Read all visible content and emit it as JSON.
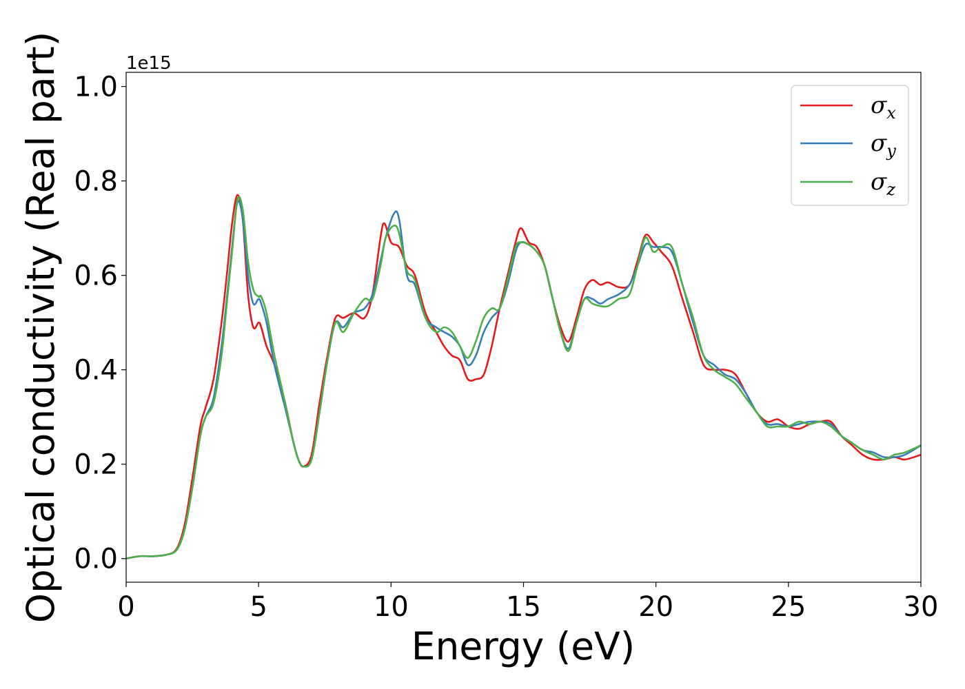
{
  "chart_data": {
    "type": "line",
    "title": "",
    "xlabel": "Energy (eV)",
    "ylabel": "Optical conductivity (Real part)",
    "y_offset_label": "1e15",
    "xlim": [
      0,
      30
    ],
    "ylim": [
      -0.05,
      1.03
    ],
    "xticks": [
      0,
      5,
      10,
      15,
      20,
      25,
      30
    ],
    "yticks": [
      0.0,
      0.2,
      0.4,
      0.6,
      0.8,
      1.0
    ],
    "xtick_labels": [
      "0",
      "5",
      "10",
      "15",
      "20",
      "25",
      "30"
    ],
    "ytick_labels": [
      "0.0",
      "0.2",
      "0.4",
      "0.6",
      "0.8",
      "1.0"
    ],
    "grid": false,
    "legend_position": "top-right",
    "series": [
      {
        "name": "σ",
        "subscript": "x",
        "color": "#e41a1c",
        "x": [
          0,
          0.5,
          1,
          1.5,
          1.9,
          2.2,
          2.5,
          2.8,
          3.0,
          3.3,
          3.6,
          3.8,
          4.0,
          4.2,
          4.4,
          4.6,
          4.8,
          5.0,
          5.1,
          5.3,
          5.6,
          6.0,
          6.3,
          6.5,
          6.7,
          7.0,
          7.3,
          7.6,
          7.9,
          8.2,
          8.6,
          9.0,
          9.3,
          9.6,
          9.75,
          10.0,
          10.3,
          10.6,
          10.9,
          11.3,
          11.7,
          12.0,
          12.3,
          12.6,
          12.9,
          13.2,
          13.5,
          13.8,
          14.1,
          14.4,
          14.7,
          14.9,
          15.2,
          15.5,
          15.8,
          16.1,
          16.4,
          16.7,
          17.0,
          17.3,
          17.6,
          17.9,
          18.2,
          18.6,
          19.0,
          19.3,
          19.6,
          19.9,
          20.2,
          20.6,
          21.0,
          21.4,
          21.8,
          22.2,
          22.6,
          23.0,
          23.4,
          23.8,
          24.2,
          24.6,
          25.0,
          25.4,
          25.8,
          26.2,
          26.6,
          27.0,
          27.4,
          27.8,
          28.2,
          28.6,
          29.0,
          29.4,
          30.0
        ],
        "y": [
          0.0,
          0.005,
          0.005,
          0.008,
          0.02,
          0.07,
          0.17,
          0.28,
          0.32,
          0.38,
          0.5,
          0.6,
          0.71,
          0.77,
          0.72,
          0.56,
          0.49,
          0.5,
          0.49,
          0.45,
          0.41,
          0.33,
          0.25,
          0.21,
          0.195,
          0.22,
          0.33,
          0.43,
          0.51,
          0.51,
          0.52,
          0.51,
          0.56,
          0.68,
          0.71,
          0.67,
          0.66,
          0.62,
          0.6,
          0.52,
          0.48,
          0.45,
          0.43,
          0.42,
          0.38,
          0.38,
          0.39,
          0.45,
          0.53,
          0.6,
          0.67,
          0.7,
          0.67,
          0.66,
          0.62,
          0.55,
          0.49,
          0.46,
          0.51,
          0.57,
          0.59,
          0.58,
          0.585,
          0.575,
          0.58,
          0.63,
          0.685,
          0.67,
          0.65,
          0.62,
          0.55,
          0.48,
          0.41,
          0.4,
          0.4,
          0.39,
          0.35,
          0.31,
          0.29,
          0.295,
          0.28,
          0.275,
          0.285,
          0.29,
          0.29,
          0.26,
          0.24,
          0.22,
          0.21,
          0.21,
          0.215,
          0.21,
          0.22
        ]
      },
      {
        "name": "σ",
        "subscript": "y",
        "color": "#377eb8",
        "x": [
          0,
          0.5,
          1,
          1.5,
          1.9,
          2.2,
          2.5,
          2.8,
          3.0,
          3.3,
          3.6,
          3.8,
          4.0,
          4.2,
          4.4,
          4.6,
          4.8,
          5.0,
          5.1,
          5.3,
          5.6,
          6.0,
          6.3,
          6.5,
          6.7,
          7.0,
          7.3,
          7.6,
          7.9,
          8.2,
          8.6,
          9.0,
          9.3,
          9.6,
          9.8,
          10.1,
          10.3,
          10.6,
          10.9,
          11.3,
          11.7,
          12.0,
          12.3,
          12.6,
          12.9,
          13.2,
          13.5,
          13.8,
          14.1,
          14.4,
          14.7,
          14.9,
          15.2,
          15.5,
          15.8,
          16.1,
          16.4,
          16.7,
          17.0,
          17.3,
          17.6,
          17.9,
          18.2,
          18.6,
          19.0,
          19.3,
          19.6,
          19.9,
          20.2,
          20.6,
          21.0,
          21.4,
          21.8,
          22.2,
          22.6,
          23.0,
          23.4,
          23.8,
          24.2,
          24.6,
          25.0,
          25.4,
          25.8,
          26.2,
          26.6,
          27.0,
          27.4,
          27.8,
          28.2,
          28.6,
          29.0,
          29.4,
          30.0
        ],
        "y": [
          0.0,
          0.005,
          0.005,
          0.008,
          0.018,
          0.06,
          0.15,
          0.26,
          0.3,
          0.34,
          0.45,
          0.55,
          0.66,
          0.755,
          0.72,
          0.6,
          0.54,
          0.55,
          0.54,
          0.5,
          0.41,
          0.32,
          0.25,
          0.21,
          0.195,
          0.21,
          0.31,
          0.42,
          0.5,
          0.49,
          0.52,
          0.53,
          0.56,
          0.63,
          0.68,
          0.73,
          0.72,
          0.6,
          0.58,
          0.51,
          0.49,
          0.48,
          0.47,
          0.45,
          0.41,
          0.43,
          0.48,
          0.51,
          0.53,
          0.58,
          0.65,
          0.67,
          0.665,
          0.65,
          0.62,
          0.55,
          0.48,
          0.445,
          0.5,
          0.55,
          0.55,
          0.54,
          0.55,
          0.56,
          0.58,
          0.62,
          0.665,
          0.66,
          0.66,
          0.65,
          0.58,
          0.5,
          0.43,
          0.41,
          0.39,
          0.38,
          0.35,
          0.31,
          0.285,
          0.285,
          0.28,
          0.285,
          0.29,
          0.29,
          0.285,
          0.26,
          0.245,
          0.23,
          0.225,
          0.215,
          0.215,
          0.22,
          0.24
        ]
      },
      {
        "name": "σ",
        "subscript": "z",
        "color": "#4daf4a",
        "x": [
          0,
          0.5,
          1,
          1.5,
          1.9,
          2.2,
          2.5,
          2.8,
          3.0,
          3.3,
          3.6,
          3.8,
          4.0,
          4.2,
          4.4,
          4.6,
          4.8,
          5.0,
          5.1,
          5.3,
          5.6,
          6.0,
          6.3,
          6.5,
          6.7,
          7.0,
          7.3,
          7.6,
          7.9,
          8.2,
          8.6,
          9.0,
          9.3,
          9.6,
          9.8,
          10.1,
          10.3,
          10.6,
          10.9,
          11.3,
          11.7,
          12.0,
          12.3,
          12.6,
          12.9,
          13.2,
          13.5,
          13.8,
          14.1,
          14.4,
          14.7,
          14.9,
          15.2,
          15.5,
          15.8,
          16.1,
          16.4,
          16.7,
          17.0,
          17.3,
          17.6,
          17.9,
          18.2,
          18.6,
          19.0,
          19.3,
          19.6,
          19.9,
          20.2,
          20.6,
          21.0,
          21.4,
          21.8,
          22.2,
          22.6,
          23.0,
          23.4,
          23.8,
          24.2,
          24.6,
          25.0,
          25.4,
          25.8,
          26.2,
          26.6,
          27.0,
          27.4,
          27.8,
          28.2,
          28.6,
          29.0,
          29.4,
          30.0
        ],
        "y": [
          0.0,
          0.005,
          0.005,
          0.008,
          0.018,
          0.06,
          0.15,
          0.26,
          0.3,
          0.33,
          0.43,
          0.54,
          0.65,
          0.76,
          0.74,
          0.63,
          0.57,
          0.555,
          0.555,
          0.52,
          0.43,
          0.33,
          0.25,
          0.21,
          0.195,
          0.21,
          0.31,
          0.42,
          0.5,
          0.48,
          0.52,
          0.55,
          0.55,
          0.62,
          0.68,
          0.705,
          0.69,
          0.61,
          0.59,
          0.51,
          0.48,
          0.49,
          0.48,
          0.45,
          0.425,
          0.46,
          0.51,
          0.53,
          0.53,
          0.59,
          0.66,
          0.67,
          0.665,
          0.65,
          0.62,
          0.55,
          0.48,
          0.44,
          0.5,
          0.55,
          0.54,
          0.535,
          0.535,
          0.55,
          0.56,
          0.62,
          0.68,
          0.65,
          0.66,
          0.66,
          0.58,
          0.51,
          0.43,
          0.4,
          0.385,
          0.37,
          0.34,
          0.31,
          0.28,
          0.28,
          0.28,
          0.29,
          0.285,
          0.29,
          0.28,
          0.26,
          0.245,
          0.23,
          0.22,
          0.21,
          0.22,
          0.225,
          0.24
        ]
      }
    ]
  }
}
